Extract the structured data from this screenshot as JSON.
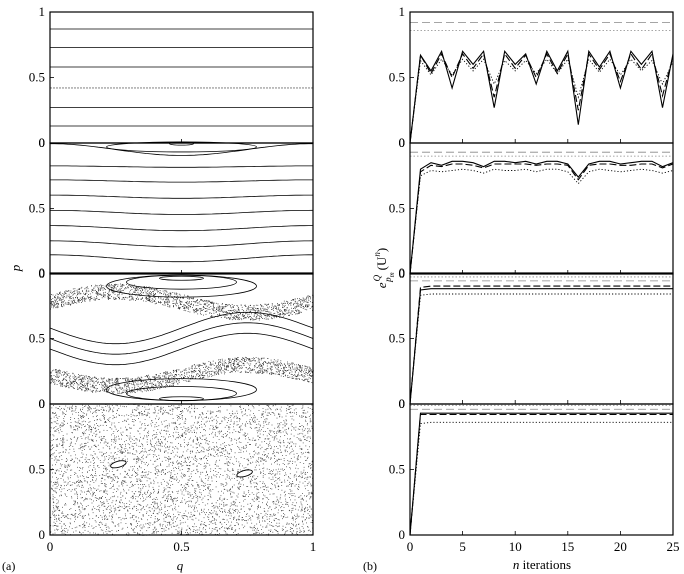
{
  "figure": {
    "left_label": "(a)",
    "right_label": "(b)"
  },
  "chart_data": [
    {
      "type": "scatter",
      "name": "phase-portraits",
      "panels": 4,
      "xlabel": "q",
      "ylabel": "p",
      "xlim": [
        0,
        1
      ],
      "ylim": [
        0,
        1
      ],
      "x_ticks": [
        "0",
        "0.5",
        "1"
      ],
      "panel_y_ticks": [
        [
          "1",
          "0.5",
          "0"
        ],
        [
          "0",
          "0.5",
          "0"
        ],
        [
          "0",
          "0.5",
          "0"
        ],
        [
          "0",
          "0.5",
          "0"
        ]
      ],
      "panel_descriptions": [
        "horizontal invariant lines",
        "one island at q=0.5 with rotational curves",
        "islands at q=0.5 with chaotic bands",
        "global chaos with two small islands near q=0.25 and q=0.75 at p≈0.5"
      ],
      "islands_panel4": [
        {
          "q": 0.26,
          "p": 0.54
        },
        {
          "q": 0.74,
          "p": 0.47
        }
      ]
    },
    {
      "type": "line",
      "name": "error-vs-iterations",
      "panels": 4,
      "xlabel": "n iterations",
      "ylabel_main": "e",
      "ylabel_super": "Q",
      "ylabel_sub": "p",
      "ylabel_subsub": "m",
      "ylabel_arg": "(U",
      "ylabel_arg_super": "n",
      "ylabel_arg_close": ")",
      "xlim": [
        0,
        25
      ],
      "ylim": [
        0,
        1
      ],
      "x_ticks": [
        "0",
        "5",
        "10",
        "15",
        "20",
        "25"
      ],
      "panel_y_ticks": [
        [
          "1",
          "0.5",
          "0"
        ],
        [
          "0",
          "0.5",
          "0"
        ],
        [
          "0",
          "0.5",
          "0"
        ],
        [
          "0",
          "0.5",
          "0"
        ]
      ],
      "x": [
        0,
        1,
        2,
        3,
        4,
        5,
        6,
        7,
        8,
        9,
        10,
        11,
        12,
        13,
        14,
        15,
        16,
        17,
        18,
        19,
        20,
        21,
        22,
        23,
        24,
        25
      ],
      "panel_series": [
        {
          "solid": [
            0,
            0.67,
            0.55,
            0.7,
            0.42,
            0.7,
            0.6,
            0.7,
            0.27,
            0.7,
            0.6,
            0.68,
            0.45,
            0.7,
            0.55,
            0.7,
            0.14,
            0.7,
            0.58,
            0.7,
            0.42,
            0.7,
            0.6,
            0.7,
            0.27,
            0.68
          ],
          "dashed": [
            0,
            0.67,
            0.53,
            0.68,
            0.5,
            0.68,
            0.57,
            0.68,
            0.35,
            0.68,
            0.57,
            0.67,
            0.5,
            0.68,
            0.53,
            0.68,
            0.25,
            0.68,
            0.56,
            0.68,
            0.47,
            0.68,
            0.56,
            0.68,
            0.36,
            0.66
          ],
          "dotted": [
            0,
            0.63,
            0.52,
            0.64,
            0.52,
            0.64,
            0.55,
            0.64,
            0.45,
            0.63,
            0.55,
            0.63,
            0.53,
            0.64,
            0.53,
            0.64,
            0.35,
            0.64,
            0.54,
            0.64,
            0.52,
            0.64,
            0.55,
            0.63,
            0.45,
            0.62
          ],
          "upper_dashed": 0.92,
          "upper_dotted": 0.86
        },
        {
          "solid": [
            0,
            0.8,
            0.85,
            0.83,
            0.86,
            0.86,
            0.85,
            0.82,
            0.86,
            0.86,
            0.85,
            0.86,
            0.84,
            0.86,
            0.86,
            0.84,
            0.74,
            0.84,
            0.86,
            0.86,
            0.84,
            0.85,
            0.86,
            0.86,
            0.82,
            0.85
          ],
          "dashed": [
            0,
            0.78,
            0.83,
            0.82,
            0.84,
            0.84,
            0.83,
            0.81,
            0.84,
            0.84,
            0.84,
            0.84,
            0.83,
            0.84,
            0.84,
            0.83,
            0.72,
            0.83,
            0.84,
            0.84,
            0.83,
            0.83,
            0.84,
            0.84,
            0.81,
            0.84
          ],
          "dotted": [
            0,
            0.75,
            0.79,
            0.78,
            0.79,
            0.8,
            0.79,
            0.77,
            0.8,
            0.79,
            0.79,
            0.8,
            0.78,
            0.8,
            0.8,
            0.78,
            0.69,
            0.78,
            0.8,
            0.79,
            0.78,
            0.79,
            0.8,
            0.79,
            0.77,
            0.79
          ],
          "upper_dashed": 0.93,
          "upper_dotted": 0.9
        },
        {
          "solid": [
            0,
            0.87,
            0.88,
            0.88,
            0.88,
            0.88,
            0.88,
            0.88,
            0.88,
            0.88,
            0.88,
            0.88,
            0.88,
            0.88,
            0.88,
            0.88,
            0.88,
            0.88,
            0.88,
            0.88,
            0.88,
            0.88,
            0.88,
            0.88,
            0.88,
            0.88
          ],
          "dashed": [
            0,
            0.89,
            0.9,
            0.9,
            0.9,
            0.9,
            0.9,
            0.9,
            0.9,
            0.9,
            0.9,
            0.9,
            0.9,
            0.9,
            0.9,
            0.9,
            0.9,
            0.9,
            0.9,
            0.9,
            0.9,
            0.9,
            0.9,
            0.9,
            0.9,
            0.9
          ],
          "dotted": [
            0,
            0.83,
            0.84,
            0.84,
            0.84,
            0.84,
            0.84,
            0.84,
            0.84,
            0.84,
            0.84,
            0.84,
            0.84,
            0.84,
            0.84,
            0.84,
            0.84,
            0.84,
            0.84,
            0.84,
            0.84,
            0.84,
            0.84,
            0.84,
            0.84,
            0.84
          ],
          "upper_dashed": 0.94,
          "upper_dotted": 0.97
        },
        {
          "solid": [
            0,
            0.93,
            0.93,
            0.93,
            0.93,
            0.93,
            0.93,
            0.93,
            0.93,
            0.93,
            0.93,
            0.93,
            0.93,
            0.93,
            0.93,
            0.93,
            0.93,
            0.93,
            0.93,
            0.93,
            0.93,
            0.93,
            0.93,
            0.93,
            0.93,
            0.93
          ],
          "dashed": [
            0,
            0.92,
            0.92,
            0.92,
            0.92,
            0.92,
            0.92,
            0.92,
            0.92,
            0.92,
            0.92,
            0.92,
            0.92,
            0.92,
            0.92,
            0.92,
            0.92,
            0.92,
            0.92,
            0.92,
            0.92,
            0.92,
            0.92,
            0.92,
            0.92,
            0.92
          ],
          "dotted": [
            0,
            0.85,
            0.86,
            0.86,
            0.86,
            0.86,
            0.86,
            0.86,
            0.86,
            0.86,
            0.86,
            0.86,
            0.86,
            0.86,
            0.86,
            0.86,
            0.86,
            0.86,
            0.86,
            0.86,
            0.86,
            0.86,
            0.86,
            0.86,
            0.86,
            0.86
          ],
          "upper_dashed": 0.96,
          "upper_dotted": 0.99
        }
      ]
    }
  ]
}
